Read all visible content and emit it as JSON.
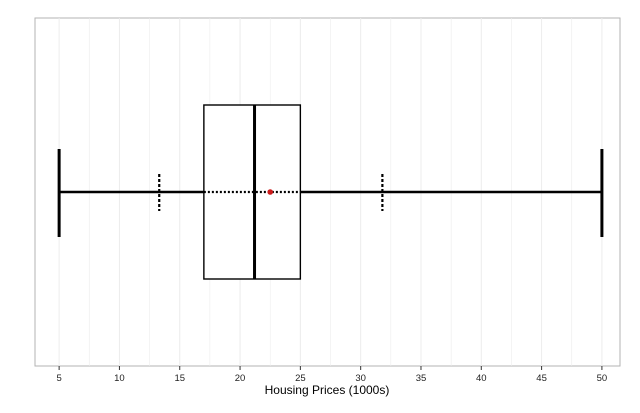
{
  "chart_data": {
    "type": "boxplot",
    "title": "",
    "xlabel": "Housing Prices (1000s)",
    "ylabel": "",
    "xlim": [
      3,
      51.5
    ],
    "x_ticks": [
      5,
      10,
      15,
      20,
      25,
      30,
      35,
      40,
      45,
      50
    ],
    "grid": true,
    "box": {
      "min": 5,
      "q1": 17.0,
      "median": 21.2,
      "q3": 25.0,
      "max": 50,
      "mean": 22.5
    },
    "dotted_range": {
      "low": 13.3,
      "high": 31.8
    },
    "colors": {
      "mean_point": "#cc1a1a",
      "lines": "#000000",
      "grid": "#ececec",
      "frame": "#b3b3b3"
    }
  }
}
